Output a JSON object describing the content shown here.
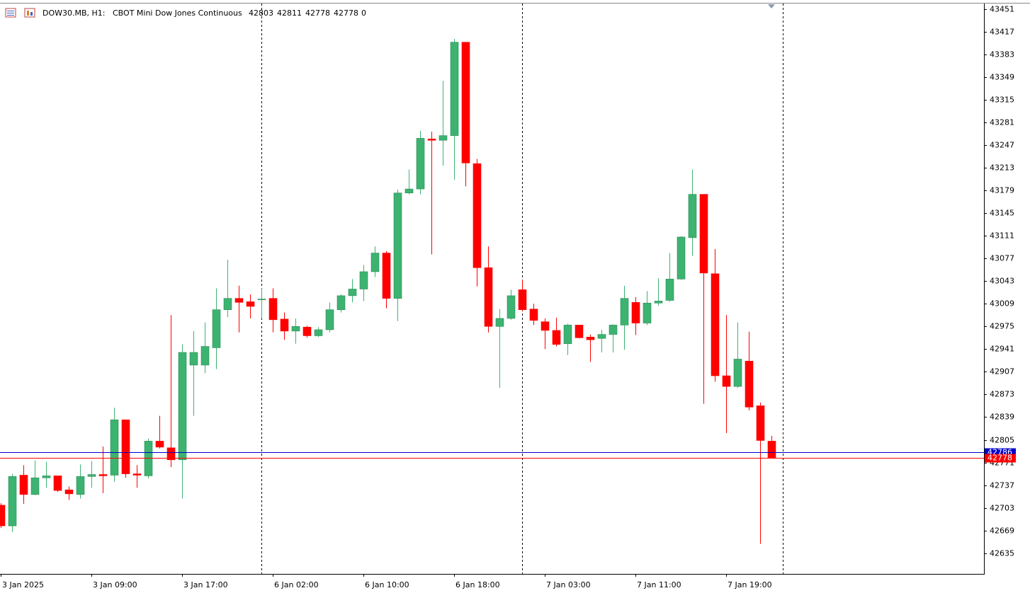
{
  "chart_data": {
    "type": "candlestick",
    "symbol": "DOW30.MB, H1:",
    "description": "CBOT Mini Dow Jones Continuous",
    "header_values": [
      42803,
      42811,
      42778,
      42778,
      0
    ],
    "categories": [
      "3 Jan 2025",
      null,
      null,
      null,
      null,
      null,
      null,
      null,
      "3 Jan 09:00",
      null,
      null,
      null,
      null,
      null,
      null,
      null,
      "3 Jan 17:00",
      null,
      null,
      null,
      null,
      null,
      null,
      null,
      "6 Jan 02:00",
      null,
      null,
      null,
      null,
      null,
      null,
      null,
      "6 Jan 10:00",
      null,
      null,
      null,
      null,
      null,
      null,
      null,
      "6 Jan 18:00",
      null,
      null,
      null,
      null,
      null,
      null,
      null,
      "7 Jan 03:00",
      null,
      null,
      null,
      null,
      null,
      null,
      null,
      "7 Jan 11:00",
      null,
      null,
      null,
      null,
      null,
      null,
      null,
      "7 Jan 19:00",
      null,
      null,
      null,
      null
    ],
    "open": [
      42707,
      42676,
      42752,
      42723,
      42748,
      42751,
      42730,
      42723,
      42750,
      42753,
      42752,
      42835,
      42754,
      42751,
      42803,
      42793,
      42775,
      42917,
      42917,
      42943,
      43000,
      43017,
      43012,
      43016,
      43017,
      42986,
      42968,
      42974,
      42961,
      42970,
      43000,
      43021,
      43031,
      43057,
      43085,
      43017,
      43175,
      43181,
      43256,
      43254,
      43261,
      43401,
      43219,
      43063,
      42975,
      42987,
      43030,
      43001,
      42982,
      42969,
      42949,
      42977,
      42959,
      42957,
      42963,
      42977,
      43011,
      42980,
      43010,
      43014,
      43046,
      43108,
      43173,
      43054,
      42901,
      42885,
      42923,
      42856,
      42803
    ],
    "high": [
      42710,
      42754,
      42767,
      42774,
      42772,
      42751,
      42735,
      42768,
      42773,
      42795,
      42853,
      42835,
      42767,
      42807,
      42841,
      42992,
      42948,
      42968,
      42981,
      43032,
      43075,
      43036,
      43023,
      43032,
      43032,
      42996,
      42987,
      42976,
      42974,
      43011,
      43023,
      43046,
      43067,
      43095,
      43088,
      43180,
      43210,
      43268,
      43267,
      43343,
      43406,
      43401,
      43226,
      43095,
      43001,
      43030,
      43045,
      43009,
      42987,
      42988,
      42979,
      42977,
      42963,
      42970,
      42978,
      43036,
      43019,
      43028,
      43047,
      43085,
      43110,
      43210,
      43173,
      43091,
      42992,
      42981,
      42967,
      42861,
      42811
    ],
    "low": [
      42673,
      42667,
      42709,
      42722,
      42733,
      42727,
      42715,
      42717,
      42733,
      42725,
      42742,
      42748,
      42733,
      42747,
      42792,
      42764,
      42717,
      42841,
      42905,
      42911,
      42989,
      42966,
      42987,
      42987,
      42966,
      42955,
      42949,
      42958,
      42959,
      42966,
      42996,
      43011,
      43013,
      43049,
      43002,
      42983,
      43173,
      43173,
      43083,
      43216,
      43195,
      43185,
      43035,
      42966,
      42883,
      42985,
      42998,
      42977,
      42941,
      42945,
      42932,
      42957,
      42922,
      42936,
      42936,
      42940,
      42962,
      42977,
      43006,
      43012,
      43045,
      43081,
      42859,
      42892,
      42815,
      42883,
      42849,
      42649,
      42778
    ],
    "close": [
      42676,
      42750,
      42723,
      42748,
      42751,
      42729,
      42724,
      42750,
      42753,
      42751,
      42835,
      42754,
      42752,
      42803,
      42794,
      42775,
      42936,
      42936,
      42945,
      43000,
      43017,
      43011,
      43005,
      43016,
      42985,
      42968,
      42975,
      42961,
      42970,
      43000,
      43021,
      43031,
      43057,
      43085,
      43017,
      43175,
      43181,
      43257,
      43254,
      43261,
      43401,
      43220,
      43063,
      42975,
      42987,
      43021,
      43000,
      42984,
      42969,
      42948,
      42977,
      42958,
      42955,
      42963,
      42977,
      43017,
      42980,
      43010,
      43013,
      43046,
      43109,
      43173,
      43055,
      42901,
      42885,
      42926,
      42854,
      42804,
      42778
    ],
    "up_color": "#3cb371",
    "down_color": "#ff0000",
    "ylim": [
      42604,
      43459
    ],
    "yticks": [
      43451,
      43417,
      43383,
      43349,
      43315,
      43281,
      43247,
      43213,
      43179,
      43145,
      43111,
      43077,
      43043,
      43009,
      42975,
      42941,
      42907,
      42873,
      42839,
      42805,
      42771,
      42737,
      42703,
      42669,
      42635
    ],
    "price_lines": [
      {
        "value": 42786,
        "color": "#0000c8"
      },
      {
        "value": 42778,
        "color": "#ff0000"
      }
    ]
  }
}
